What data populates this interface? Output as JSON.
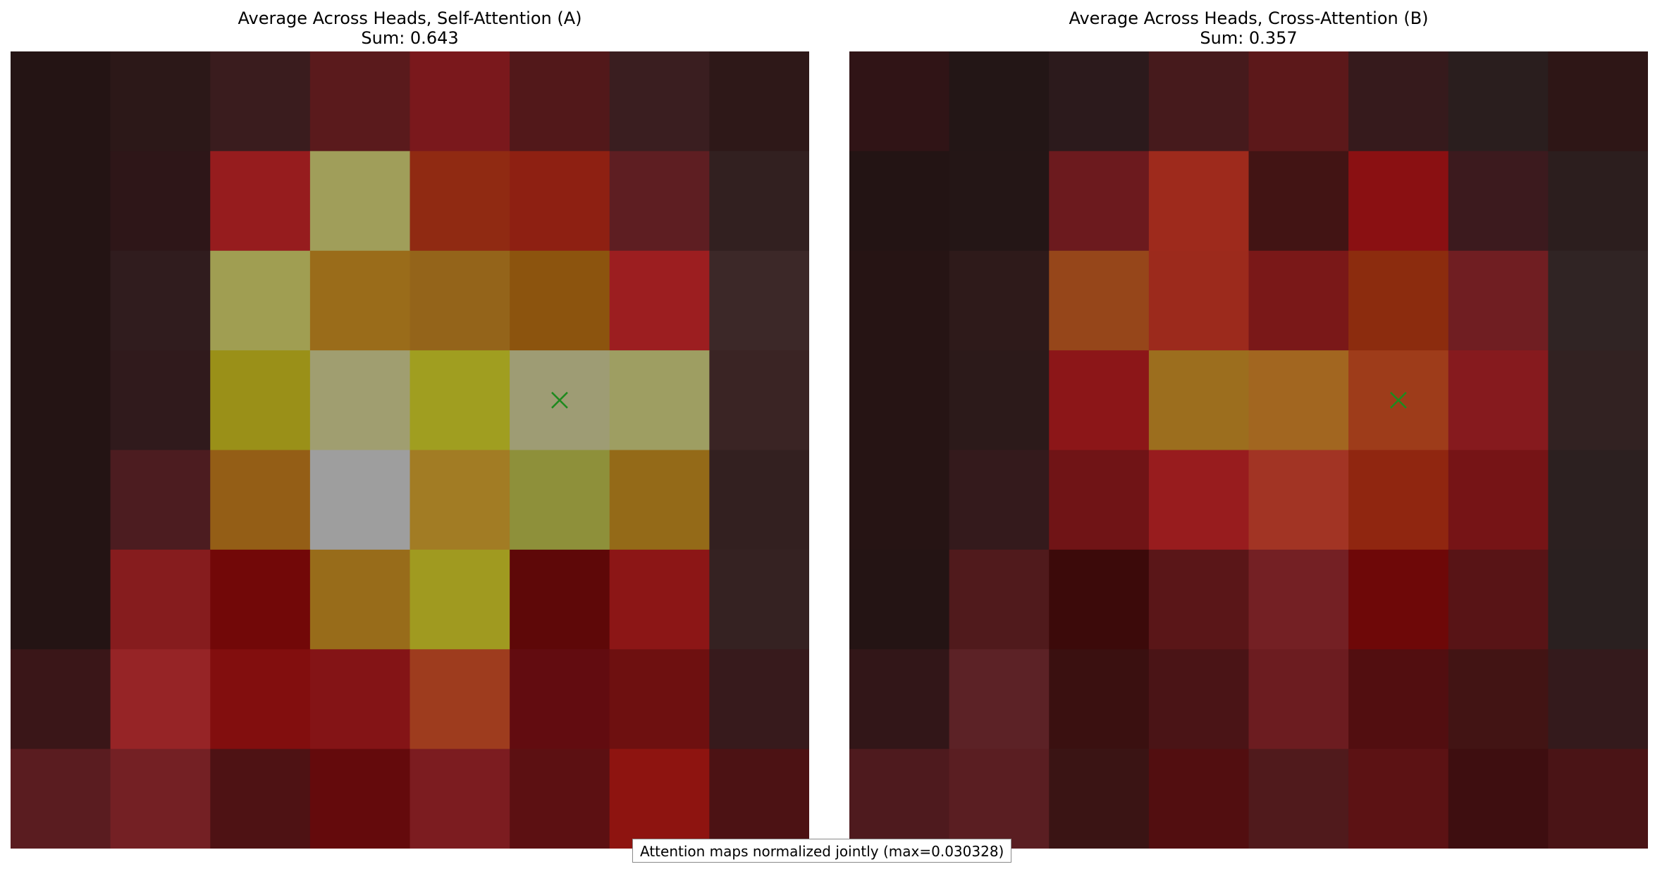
{
  "chart_data": [
    {
      "type": "heatmap",
      "title": "Average Across Heads, Self-Attention (A)",
      "subtitle": "Sum: 0.643",
      "rows": 8,
      "cols": 8,
      "marker": {
        "row": 3,
        "col": 5,
        "symbol": "x",
        "color": "#1e8a1e"
      },
      "cell_colors": [
        [
          "#241414",
          "#2c1818",
          "#3a1c1e",
          "#5a1a1c",
          "#7a181c",
          "#52181a",
          "#3a1e20",
          "#2e1818"
        ],
        [
          "#241414",
          "#2e1618",
          "#961c1e",
          "#a09e5a",
          "#902a12",
          "#8e2012",
          "#5e1e22",
          "#322020"
        ],
        [
          "#241414",
          "#301c1e",
          "#a09e52",
          "#9a6c1a",
          "#94641a",
          "#8c540e",
          "#9c1e20",
          "#3c2828"
        ],
        [
          "#241414",
          "#301a1c",
          "#9a9018",
          "#a09e70",
          "#a09e20",
          "#9e9c74",
          "#9e9e62",
          "#3a2424"
        ],
        [
          "#241414",
          "#4c1c20",
          "#945e16",
          "#9e9e9e",
          "#a27c24",
          "#8e903a",
          "#946a18",
          "#332020"
        ],
        [
          "#241414",
          "#861c1e",
          "#720808",
          "#986c1a",
          "#a09a20",
          "#5e0808",
          "#8c1616",
          "#352222"
        ],
        [
          "#3a1618",
          "#962426",
          "#820e0e",
          "#841416",
          "#9e3c1e",
          "#620c10",
          "#6e1010",
          "#371a1c"
        ],
        [
          "#5a1c20",
          "#742024",
          "#4e1214",
          "#640a0c",
          "#7c1c20",
          "#5c1012",
          "#8e1410",
          "#4c1214"
        ]
      ]
    },
    {
      "type": "heatmap",
      "title": "Average Across Heads, Cross-Attention (B)",
      "subtitle": "Sum: 0.357",
      "rows": 8,
      "cols": 8,
      "marker": {
        "row": 3,
        "col": 5,
        "symbol": "x",
        "color": "#1e8a1e"
      },
      "cell_colors": [
        [
          "#301416",
          "#231616",
          "#2c1a1c",
          "#461a1c",
          "#5c181a",
          "#361a1c",
          "#2a1e1e",
          "#2e1616"
        ],
        [
          "#231414",
          "#241616",
          "#6c1a1e",
          "#9e2a1c",
          "#421414",
          "#8a1012",
          "#3c1a1e",
          "#2c1e1e"
        ],
        [
          "#261414",
          "#2e1a1a",
          "#96461a",
          "#9c2a1c",
          "#7a1818",
          "#8c2c0e",
          "#701e22",
          "#302424"
        ],
        [
          "#261414",
          "#2c1a1a",
          "#8c1618",
          "#9c6e1e",
          "#a26620",
          "#9e3c1a",
          "#861a1e",
          "#322222"
        ],
        [
          "#261414",
          "#341a1c",
          "#701416",
          "#981c1e",
          "#a23424",
          "#902610",
          "#761416",
          "#2c2020"
        ],
        [
          "#241414",
          "#501a1c",
          "#3c0a0a",
          "#5a1618",
          "#742024",
          "#6e0808",
          "#581416",
          "#2a2020"
        ],
        [
          "#321618",
          "#5c2226",
          "#3a1010",
          "#4a1416",
          "#6c1c20",
          "#520e10",
          "#421414",
          "#341a1c"
        ],
        [
          "#4e1a1e",
          "#5a1e22",
          "#3a1414",
          "#520e10",
          "#501a1c",
          "#5c1214",
          "#3e0e10",
          "#4a1416"
        ]
      ]
    }
  ],
  "footnote": "Attention maps normalized jointly (max=0.030328)"
}
